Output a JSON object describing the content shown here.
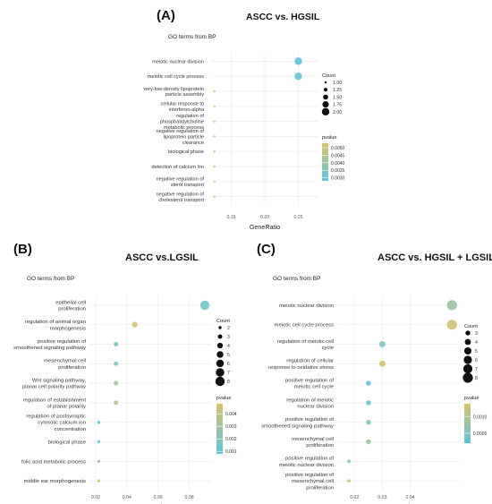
{
  "chart_data": [
    {
      "type": "scatter",
      "panel_label": "(A)",
      "title": "ASCC vs. HGSIL",
      "subtitle": "GO terms from BP",
      "xlabel": "GeneRatio",
      "x_ticks": [
        "0.15",
        "0.20",
        "0.25"
      ],
      "xlim": [
        0.12,
        0.28
      ],
      "categories": [
        "meiotic nuclear division",
        "meiotic cell cycle process",
        "very-low-density lipoprotein particle assembly",
        "cellular response to interferon-alpha",
        "regulation of phosphatidylcholine metabolic process",
        "negative regulation of lipoprotein particle clearance",
        "biological phase",
        "detection of calcium ion",
        "negative regulation of sterol transport",
        "negative regulation of cholesterol transport"
      ],
      "points": [
        {
          "x": 0.25,
          "count": 2,
          "pvalue": 0.0028
        },
        {
          "x": 0.25,
          "count": 2,
          "pvalue": 0.003
        },
        {
          "x": 0.125,
          "count": 1,
          "pvalue": 0.0052
        },
        {
          "x": 0.125,
          "count": 1,
          "pvalue": 0.0052
        },
        {
          "x": 0.125,
          "count": 1,
          "pvalue": 0.0052
        },
        {
          "x": 0.125,
          "count": 1,
          "pvalue": 0.0052
        },
        {
          "x": 0.125,
          "count": 1,
          "pvalue": 0.0052
        },
        {
          "x": 0.125,
          "count": 1,
          "pvalue": 0.0052
        },
        {
          "x": 0.125,
          "count": 1,
          "pvalue": 0.0052
        },
        {
          "x": 0.125,
          "count": 1,
          "pvalue": 0.0052
        }
      ],
      "size_legend": {
        "title": "Count",
        "values": [
          "1.00",
          "1.25",
          "1.50",
          "1.75",
          "2.00"
        ],
        "min": 1,
        "max": 2
      },
      "color_legend": {
        "title": "pvalue",
        "ticks": [
          "0.0050",
          "0.0045",
          "0.0040",
          "0.0035",
          "0.0030"
        ],
        "min": 0.0028,
        "max": 0.0053
      },
      "grid": true,
      "legend_position": "right"
    },
    {
      "type": "scatter",
      "panel_label": "(B)",
      "title": "ASCC vs.LGSIL",
      "subtitle": "GO terms from BP",
      "xlabel": "GeneRatio",
      "x_ticks": [
        "0.02",
        "0.04",
        "0.06",
        "0.08"
      ],
      "xlim": [
        0.016,
        0.094
      ],
      "categories": [
        "epithelial cell proliferation",
        "regulation of animal organ morphogenesis",
        "positive regulation of smoothened signaling pathway",
        "mesenchymal cell proliferation",
        "Wnt signaling pathway, planar cell polarity pathway",
        "regulation of establishment of planar polarity",
        "regulation of postsynaptic cytosolic calcium ion concentration",
        "biological phase",
        "folic acid metabolic process",
        "middle ear morphogenesis"
      ],
      "points": [
        {
          "x": 0.09,
          "count": 8,
          "pvalue": 0.0016
        },
        {
          "x": 0.045,
          "count": 4,
          "pvalue": 0.0046
        },
        {
          "x": 0.033,
          "count": 3,
          "pvalue": 0.0016
        },
        {
          "x": 0.033,
          "count": 3,
          "pvalue": 0.0018
        },
        {
          "x": 0.033,
          "count": 3,
          "pvalue": 0.0029
        },
        {
          "x": 0.033,
          "count": 3,
          "pvalue": 0.0035
        },
        {
          "x": 0.022,
          "count": 2,
          "pvalue": 0.001
        },
        {
          "x": 0.022,
          "count": 2,
          "pvalue": 0.0012
        },
        {
          "x": 0.022,
          "count": 2,
          "pvalue": 0.003
        },
        {
          "x": 0.022,
          "count": 2,
          "pvalue": 0.0046
        }
      ],
      "size_legend": {
        "title": "Count",
        "values": [
          "2",
          "3",
          "4",
          "5",
          "6",
          "7",
          "8"
        ],
        "min": 2,
        "max": 8
      },
      "color_legend": {
        "title": "pvalue",
        "ticks": [
          "0.004",
          "0.003",
          "0.002",
          "0.001"
        ],
        "min": 0.0008,
        "max": 0.0048
      },
      "grid": true,
      "legend_position": "right"
    },
    {
      "type": "scatter",
      "panel_label": "(C)",
      "title": "ASCC vs. HGSIL + LGSIL",
      "subtitle": "GO terms from BP",
      "xlabel": "GeneRatio",
      "x_ticks": [
        "0.02",
        "0.03",
        "0.04"
      ],
      "xlim": [
        0.0138,
        0.0575
      ],
      "categories": [
        "meiotic nuclear division",
        "meiotic cell cycle process",
        "regulation of meiotic cell cycle",
        "regulation of cellular response to oxidative stress",
        "positive regulation of meiotic cell cycle",
        "regulation of meiotic nuclear division",
        "positive regulation of smoothened signaling pathway",
        "mesenchymal cell proliferation",
        "positive regulation of meiotic nuclear division",
        "positive regulation of mesenchymal cell proliferation"
      ],
      "points": [
        {
          "x": 0.055,
          "count": 8,
          "pvalue": 0.0008
        },
        {
          "x": 0.055,
          "count": 8,
          "pvalue": 0.0013
        },
        {
          "x": 0.03,
          "count": 4,
          "pvalue": 0.0005
        },
        {
          "x": 0.03,
          "count": 4,
          "pvalue": 0.0013
        },
        {
          "x": 0.025,
          "count": 3,
          "pvalue": 0.0002
        },
        {
          "x": 0.025,
          "count": 3,
          "pvalue": 0.0003
        },
        {
          "x": 0.025,
          "count": 3,
          "pvalue": 0.0005
        },
        {
          "x": 0.025,
          "count": 3,
          "pvalue": 0.0008
        },
        {
          "x": 0.018,
          "count": 2,
          "pvalue": 0.0006
        },
        {
          "x": 0.018,
          "count": 2,
          "pvalue": 0.0013
        }
      ],
      "size_legend": {
        "title": "Count",
        "values": [
          "3",
          "4",
          "5",
          "6",
          "7",
          "8"
        ],
        "min": 2,
        "max": 8
      },
      "color_legend": {
        "title": "pvalue",
        "ticks": [
          "0.0010",
          "0.0005"
        ],
        "min": 0.0002,
        "max": 0.0014
      },
      "grid": true,
      "legend_position": "right"
    }
  ],
  "colors": {
    "low_pvalue": "#5ec4dc",
    "high_pvalue": "#d8c36a",
    "grid": "#ececec",
    "text": "#333333"
  }
}
